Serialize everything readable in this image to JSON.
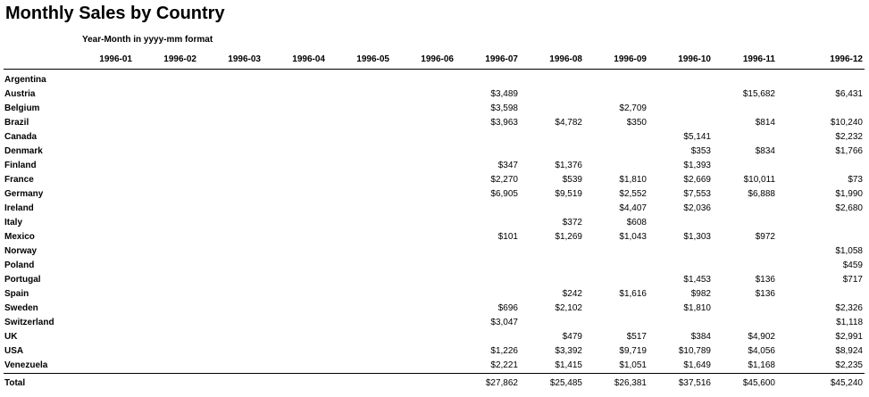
{
  "report": {
    "title": "Monthly Sales by Country",
    "format_note": "Year-Month in yyyy-mm format"
  },
  "columns": [
    "1996-01",
    "1996-02",
    "1996-03",
    "1996-04",
    "1996-05",
    "1996-06",
    "1996-07",
    "1996-08",
    "1996-09",
    "1996-10",
    "1996-11",
    "1996-12"
  ],
  "rows": [
    {
      "country": "Argentina",
      "values": [
        "",
        "",
        "",
        "",
        "",
        "",
        "",
        "",
        "",
        "",
        "",
        ""
      ]
    },
    {
      "country": "Austria",
      "values": [
        "",
        "",
        "",
        "",
        "",
        "",
        "$3,489",
        "",
        "",
        "",
        "$15,682",
        "$6,431"
      ]
    },
    {
      "country": "Belgium",
      "values": [
        "",
        "",
        "",
        "",
        "",
        "",
        "$3,598",
        "",
        "$2,709",
        "",
        "",
        ""
      ]
    },
    {
      "country": "Brazil",
      "values": [
        "",
        "",
        "",
        "",
        "",
        "",
        "$3,963",
        "$4,782",
        "$350",
        "",
        "$814",
        "$10,240"
      ]
    },
    {
      "country": "Canada",
      "values": [
        "",
        "",
        "",
        "",
        "",
        "",
        "",
        "",
        "",
        "$5,141",
        "",
        "$2,232"
      ]
    },
    {
      "country": "Denmark",
      "values": [
        "",
        "",
        "",
        "",
        "",
        "",
        "",
        "",
        "",
        "$353",
        "$834",
        "$1,766"
      ]
    },
    {
      "country": "Finland",
      "values": [
        "",
        "",
        "",
        "",
        "",
        "",
        "$347",
        "$1,376",
        "",
        "$1,393",
        "",
        ""
      ]
    },
    {
      "country": "France",
      "values": [
        "",
        "",
        "",
        "",
        "",
        "",
        "$2,270",
        "$539",
        "$1,810",
        "$2,669",
        "$10,011",
        "$73"
      ]
    },
    {
      "country": "Germany",
      "values": [
        "",
        "",
        "",
        "",
        "",
        "",
        "$6,905",
        "$9,519",
        "$2,552",
        "$7,553",
        "$6,888",
        "$1,990"
      ]
    },
    {
      "country": "Ireland",
      "values": [
        "",
        "",
        "",
        "",
        "",
        "",
        "",
        "",
        "$4,407",
        "$2,036",
        "",
        "$2,680"
      ]
    },
    {
      "country": "Italy",
      "values": [
        "",
        "",
        "",
        "",
        "",
        "",
        "",
        "$372",
        "$608",
        "",
        "",
        ""
      ]
    },
    {
      "country": "Mexico",
      "values": [
        "",
        "",
        "",
        "",
        "",
        "",
        "$101",
        "$1,269",
        "$1,043",
        "$1,303",
        "$972",
        ""
      ]
    },
    {
      "country": "Norway",
      "values": [
        "",
        "",
        "",
        "",
        "",
        "",
        "",
        "",
        "",
        "",
        "",
        "$1,058"
      ]
    },
    {
      "country": "Poland",
      "values": [
        "",
        "",
        "",
        "",
        "",
        "",
        "",
        "",
        "",
        "",
        "",
        "$459"
      ]
    },
    {
      "country": "Portugal",
      "values": [
        "",
        "",
        "",
        "",
        "",
        "",
        "",
        "",
        "",
        "$1,453",
        "$136",
        "$717"
      ]
    },
    {
      "country": "Spain",
      "values": [
        "",
        "",
        "",
        "",
        "",
        "",
        "",
        "$242",
        "$1,616",
        "$982",
        "$136",
        ""
      ]
    },
    {
      "country": "Sweden",
      "values": [
        "",
        "",
        "",
        "",
        "",
        "",
        "$696",
        "$2,102",
        "",
        "$1,810",
        "",
        "$2,326"
      ]
    },
    {
      "country": "Switzerland",
      "values": [
        "",
        "",
        "",
        "",
        "",
        "",
        "$3,047",
        "",
        "",
        "",
        "",
        "$1,118"
      ]
    },
    {
      "country": "UK",
      "values": [
        "",
        "",
        "",
        "",
        "",
        "",
        "",
        "$479",
        "$517",
        "$384",
        "$4,902",
        "$2,991"
      ]
    },
    {
      "country": "USA",
      "values": [
        "",
        "",
        "",
        "",
        "",
        "",
        "$1,226",
        "$3,392",
        "$9,719",
        "$10,789",
        "$4,056",
        "$8,924"
      ]
    },
    {
      "country": "Venezuela",
      "values": [
        "",
        "",
        "",
        "",
        "",
        "",
        "$2,221",
        "$1,415",
        "$1,051",
        "$1,649",
        "$1,168",
        "$2,235"
      ]
    }
  ],
  "total": {
    "label": "Total",
    "values": [
      "",
      "",
      "",
      "",
      "",
      "",
      "$27,862",
      "$25,485",
      "$26,381",
      "$37,516",
      "$45,600",
      "$45,240"
    ]
  }
}
